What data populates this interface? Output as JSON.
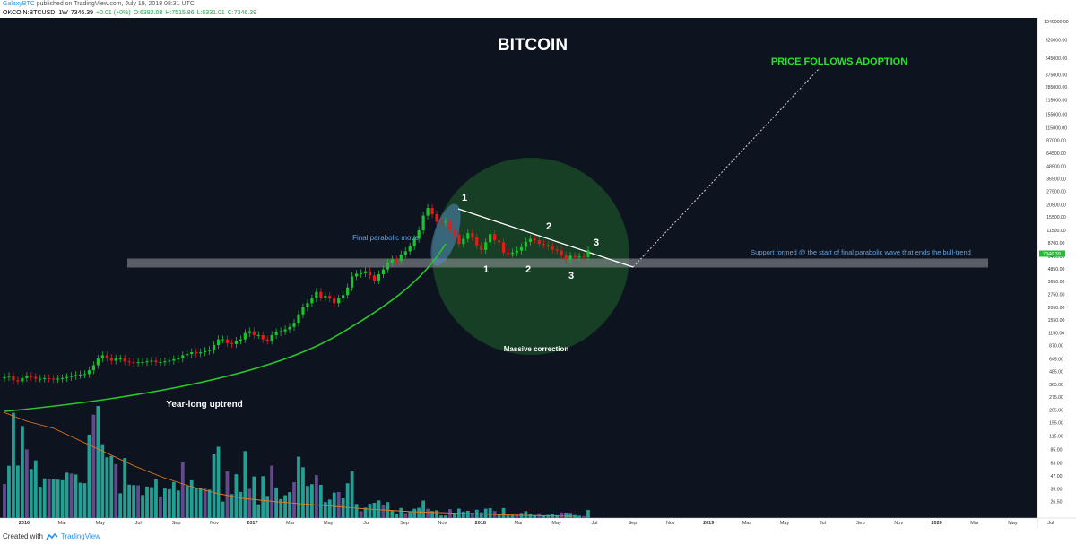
{
  "header": {
    "author": "GalaxyBTC",
    "published_text": "published on TradingView.com, July 19, 2018 08:31 UTC",
    "symbol": "OKCOIN:BTCUSD, 1W",
    "last": "7346.39",
    "change": "+0.01 (+0%)",
    "open": "O:6382.08",
    "high": "H:7515.86",
    "low": "L:6331.01",
    "close": "C:7346.39"
  },
  "footer": {
    "created_with": "Created with",
    "brand": "TradingView"
  },
  "chart_data": {
    "type": "candlestick",
    "title": "BITCOIN",
    "scale": "log",
    "ylim": [
      20.6,
      1240000
    ],
    "y_ticks": [
      "1240000.00",
      "820000.00",
      "545000.00",
      "375000.00",
      "285000.00",
      "215000.00",
      "155000.00",
      "115000.00",
      "87000.00",
      "64500.00",
      "48500.00",
      "36500.00",
      "27500.00",
      "20500.00",
      "15500.00",
      "11500.00",
      "8700.00",
      "6450.00",
      "4850.00",
      "3650.00",
      "2750.00",
      "2050.00",
      "1550.00",
      "1150.00",
      "870.00",
      "645.00",
      "485.00",
      "365.00",
      "275.00",
      "205.00",
      "155.00",
      "115.00",
      "85.00",
      "63.00",
      "47.00",
      "35.00",
      "26.50"
    ],
    "x_ticks": [
      "2016",
      "Mar",
      "May",
      "Jul",
      "Sep",
      "Nov",
      "2017",
      "Mar",
      "May",
      "Jul",
      "Sep",
      "Nov",
      "2018",
      "Mar",
      "May",
      "Jul",
      "Sep",
      "Nov",
      "2019",
      "Mar",
      "May",
      "Jul",
      "Sep",
      "Nov",
      "2020",
      "Mar",
      "May",
      "Jul"
    ],
    "current_price_label": "7346.39",
    "weekly_close": [
      430,
      440,
      400,
      390,
      420,
      440,
      430,
      415,
      415,
      420,
      415,
      410,
      415,
      420,
      430,
      440,
      450,
      455,
      460,
      500,
      560,
      650,
      700,
      660,
      620,
      650,
      650,
      610,
      600,
      590,
      600,
      600,
      610,
      620,
      600,
      600,
      610,
      620,
      640,
      650,
      700,
      720,
      750,
      730,
      750,
      770,
      790,
      880,
      1000,
      1000,
      920,
      900,
      970,
      1000,
      1150,
      1200,
      1100,
      1100,
      1000,
      970,
      1100,
      1170,
      1200,
      1250,
      1320,
      1450,
      1750,
      2050,
      2250,
      2500,
      2900,
      2550,
      2650,
      2500,
      2250,
      2500,
      2700,
      3200,
      4100,
      4350,
      4400,
      4600,
      4200,
      3750,
      4300,
      4800,
      5600,
      6000,
      5800,
      6700,
      7200,
      8000,
      9500,
      11500,
      16000,
      19000,
      16500,
      14000,
      13700,
      14000,
      11500,
      10500,
      8500,
      9500,
      10800,
      9800,
      8200,
      7400,
      8800,
      10600,
      9200,
      8800,
      7000,
      6800,
      7000,
      7300,
      7900,
      8900,
      9500,
      9200,
      8500,
      8300,
      8000,
      7500,
      7300,
      6600,
      6000,
      6500,
      6300,
      6400,
      6350,
      7346
    ]
  },
  "annotations": {
    "price_follows_adoption": "PRICE FOLLOWS ADOPTION",
    "final_parabolic_move": "Final parabolic move",
    "support_text": "Support formed @ the start of final parabolic wave that ends the bull-trend",
    "massive_correction": "Massive correction",
    "year_long_uptrend": "Year-long uptrend",
    "wave_upper": [
      "1",
      "2",
      "3"
    ],
    "wave_lower": [
      "1",
      "2",
      "3"
    ]
  },
  "colors": {
    "background": "#0e1320",
    "bull": "#18c42c",
    "bear": "#e31b1b",
    "uptrend_line": "#2ac82a",
    "support_band": "#8c8f94",
    "correction_circle": "#1a4c27",
    "adoption_text": "#26e626",
    "annotation_blue": "#5ea4e4",
    "volume_teal": "#26a69a",
    "volume_purple": "#6a4c93"
  }
}
